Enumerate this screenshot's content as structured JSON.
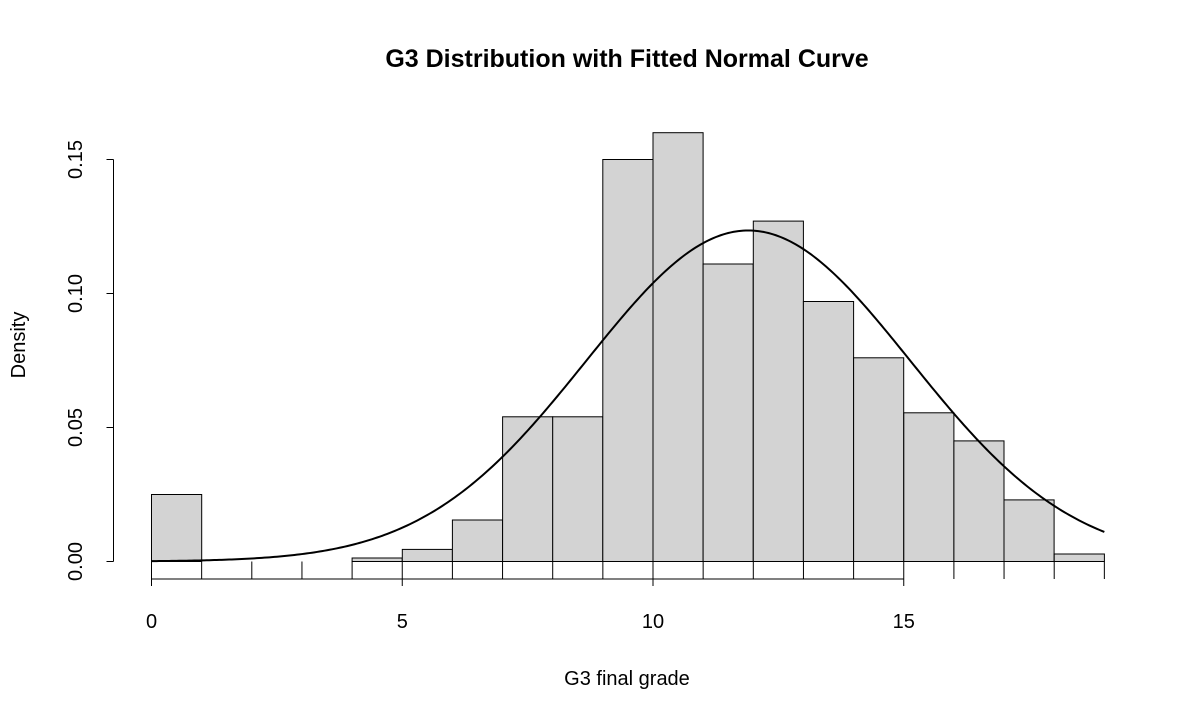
{
  "chart_data": {
    "type": "bar",
    "title": "G3 Distribution with Fitted Normal Curve",
    "xlabel": "G3 final grade",
    "ylabel": "Density",
    "xlim": [
      0,
      19
    ],
    "ylim": [
      0,
      0.16
    ],
    "x_ticks": [
      0,
      5,
      10,
      15
    ],
    "x_tick_labels": [
      "0",
      "5",
      "10",
      "15"
    ],
    "y_ticks": [
      0.0,
      0.05,
      0.1,
      0.15
    ],
    "y_tick_labels": [
      "0.00",
      "0.05",
      "0.10",
      "0.15"
    ],
    "bins": [
      {
        "start": 0,
        "end": 1,
        "density": 0.025
      },
      {
        "start": 1,
        "end": 2,
        "density": 0.0
      },
      {
        "start": 2,
        "end": 3,
        "density": 0.0
      },
      {
        "start": 3,
        "end": 4,
        "density": 0.0
      },
      {
        "start": 4,
        "end": 5,
        "density": 0.0013
      },
      {
        "start": 5,
        "end": 6,
        "density": 0.0045
      },
      {
        "start": 6,
        "end": 7,
        "density": 0.0155
      },
      {
        "start": 7,
        "end": 8,
        "density": 0.054
      },
      {
        "start": 8,
        "end": 9,
        "density": 0.054
      },
      {
        "start": 9,
        "end": 10,
        "density": 0.15
      },
      {
        "start": 10,
        "end": 11,
        "density": 0.16
      },
      {
        "start": 11,
        "end": 12,
        "density": 0.111
      },
      {
        "start": 12,
        "end": 13,
        "density": 0.127
      },
      {
        "start": 13,
        "end": 14,
        "density": 0.097
      },
      {
        "start": 14,
        "end": 15,
        "density": 0.076
      },
      {
        "start": 15,
        "end": 16,
        "density": 0.0555
      },
      {
        "start": 16,
        "end": 17,
        "density": 0.045
      },
      {
        "start": 17,
        "end": 18,
        "density": 0.023
      },
      {
        "start": 18,
        "end": 19,
        "density": 0.0028
      }
    ],
    "normal_curve": {
      "mean": 11.9,
      "sd": 3.23
    },
    "grid": false,
    "legend": "none"
  }
}
